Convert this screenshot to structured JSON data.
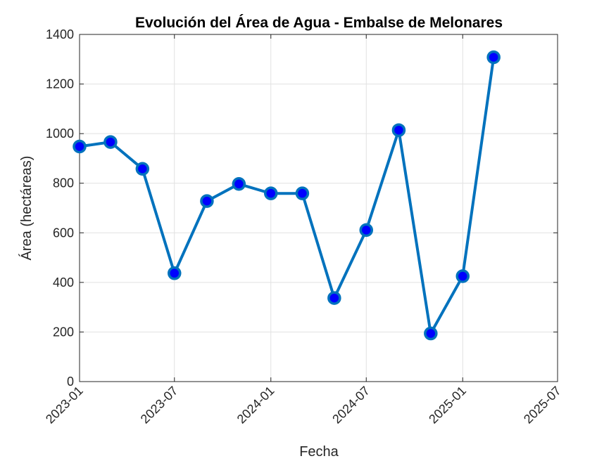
{
  "chart_data": {
    "type": "line",
    "title": "Evolución del Área de Agua - Embalse de Melonares",
    "xlabel": "Fecha",
    "ylabel": "Área (hectáreas)",
    "x_axis_type": "date",
    "xlim": [
      "2023-01-01",
      "2025-07-01"
    ],
    "ylim": [
      0,
      1400
    ],
    "x_ticks": [
      "2023-01",
      "2023-07",
      "2024-01",
      "2024-07",
      "2025-01",
      "2025-07"
    ],
    "y_ticks": [
      0,
      200,
      400,
      600,
      800,
      1000,
      1200,
      1400
    ],
    "grid": true,
    "legend": "none",
    "series": [
      {
        "line_color": "#0072BD",
        "marker_fill": "#0000FF",
        "marker_edge": "#0072BD",
        "points": [
          {
            "x": "2023-01-01",
            "y": 948
          },
          {
            "x": "2023-03-01",
            "y": 966
          },
          {
            "x": "2023-05-01",
            "y": 858
          },
          {
            "x": "2023-07-01",
            "y": 437
          },
          {
            "x": "2023-09-01",
            "y": 728
          },
          {
            "x": "2023-11-01",
            "y": 797
          },
          {
            "x": "2024-01-01",
            "y": 759
          },
          {
            "x": "2024-03-01",
            "y": 759
          },
          {
            "x": "2024-05-01",
            "y": 337
          },
          {
            "x": "2024-07-01",
            "y": 611
          },
          {
            "x": "2024-09-01",
            "y": 1014
          },
          {
            "x": "2024-11-01",
            "y": 194
          },
          {
            "x": "2025-01-01",
            "y": 425
          },
          {
            "x": "2025-03-01",
            "y": 1308
          }
        ]
      }
    ]
  }
}
